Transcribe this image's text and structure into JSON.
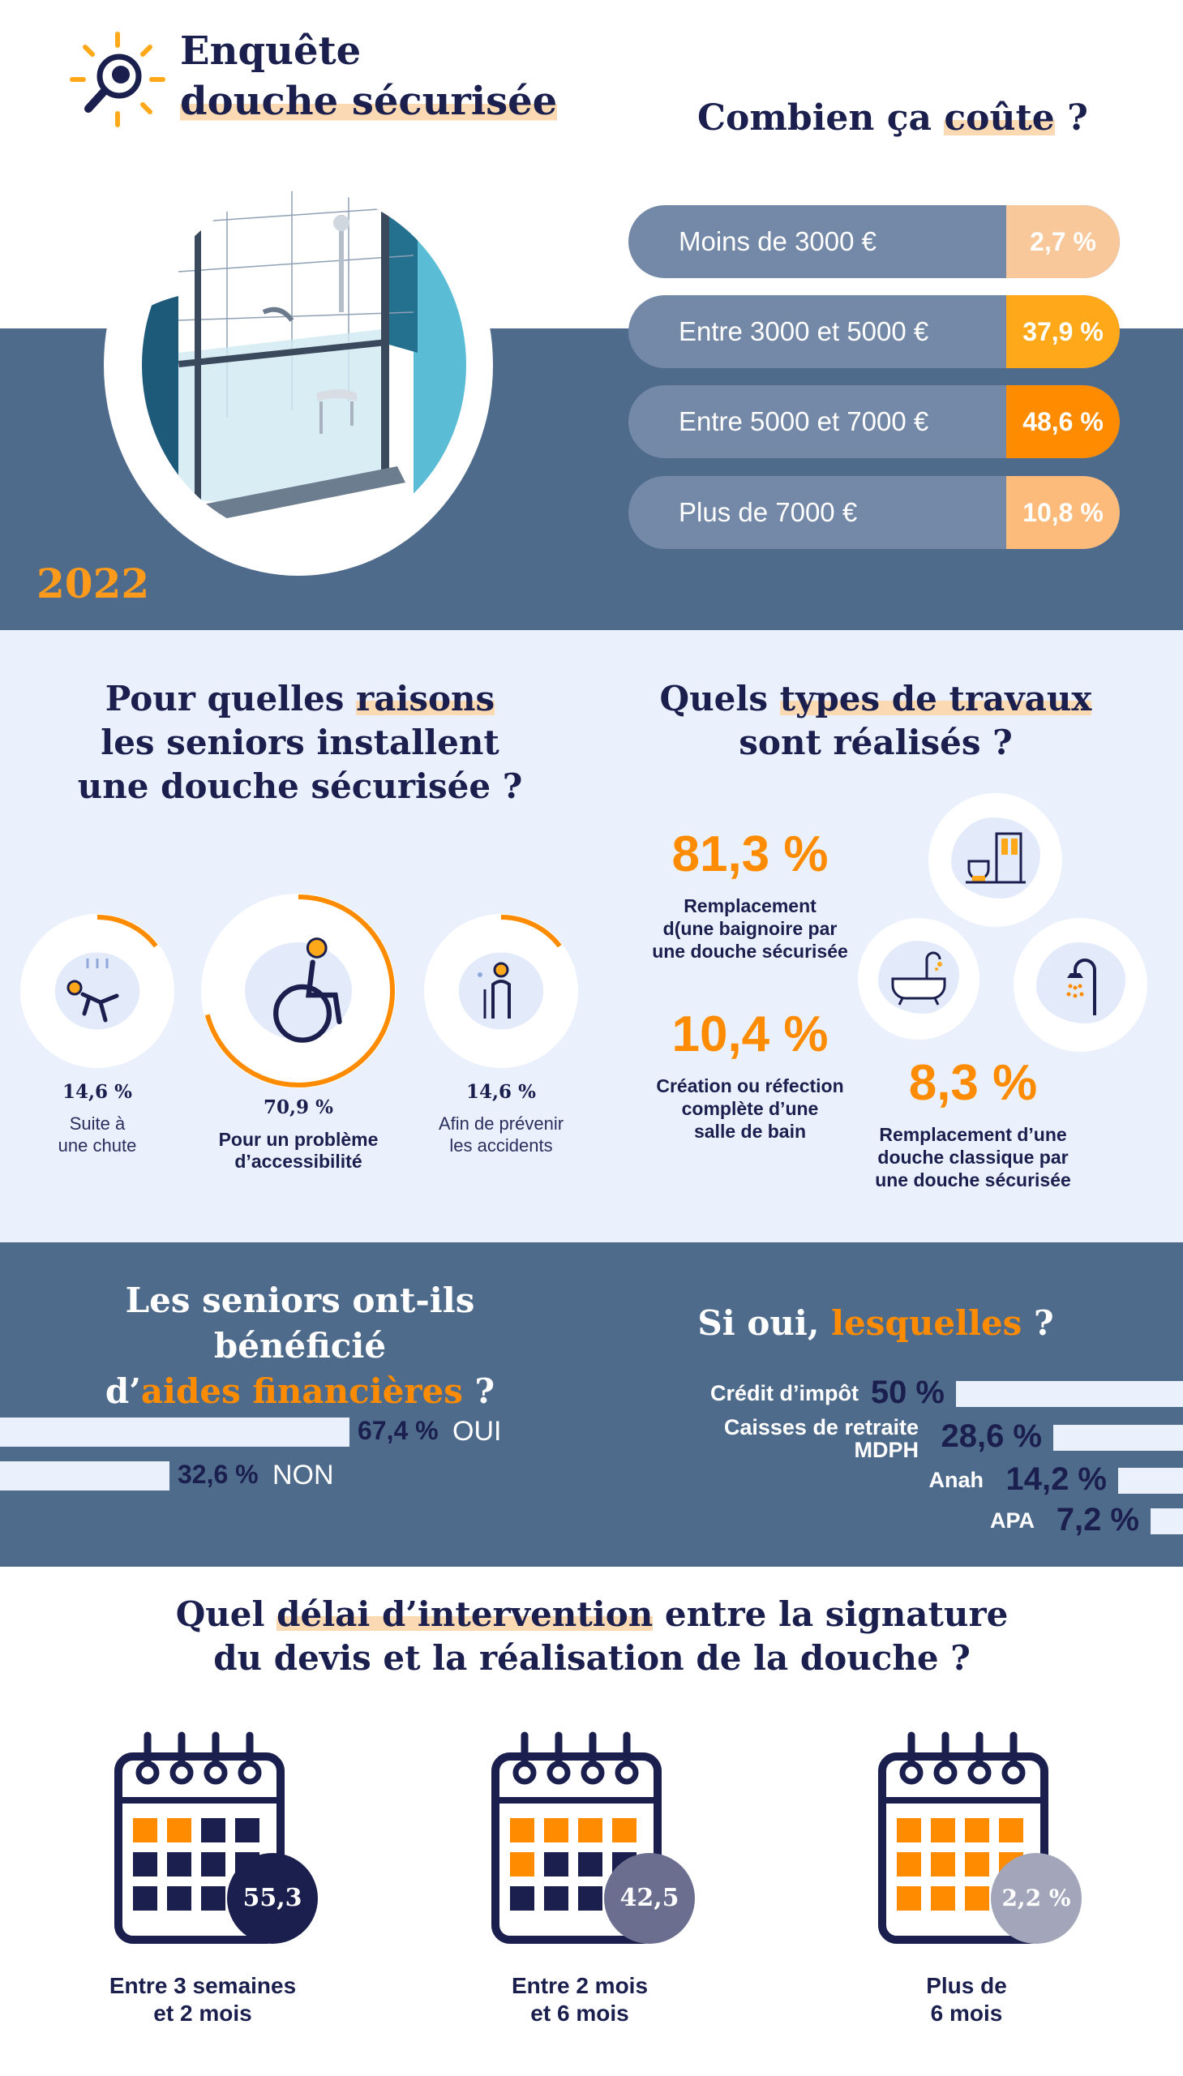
{
  "header": {
    "title_line1": "Enquête",
    "title_line2": "douche sécurisée",
    "year": "2022"
  },
  "cost": {
    "title_part1": "Combien ça ",
    "title_highlight": "coûte",
    "title_part2": " ?",
    "rows": [
      {
        "label": "Moins de 3000 €",
        "value": "2,7 %",
        "color": "#f8c79a"
      },
      {
        "label": "Entre 3000 et 5000 €",
        "value": "37,9 %",
        "color": "#ffa91a"
      },
      {
        "label": "Entre 5000 et 7000 €",
        "value": "48,6 %",
        "color": "#ff8c00"
      },
      {
        "label": "Plus de 7000 €",
        "value": "10,8 %",
        "color": "#fcbb7a"
      }
    ]
  },
  "reasons": {
    "title_part1": "Pour quelles ",
    "title_highlight": "raisons",
    "title_line2": "les seniors installent",
    "title_line3": "une douche sécurisée ?",
    "items": [
      {
        "pct": "14,6 %",
        "label_line1": "Suite à",
        "label_line2": "une chute",
        "fraction": 0.146,
        "icon": "fall-icon"
      },
      {
        "pct": "70,9 %",
        "label_line1": "Pour un problème",
        "label_line2": "d’accessibilité",
        "fraction": 0.709,
        "icon": "wheelchair-icon"
      },
      {
        "pct": "14,6 %",
        "label_line1": "Afin de prévenir",
        "label_line2": "les accidents",
        "fraction": 0.146,
        "icon": "walking-cane-icon"
      }
    ]
  },
  "works": {
    "title_part1": "Quels ",
    "title_highlight": "types de travaux",
    "title_line2": "sont réalisés ?",
    "items": [
      {
        "pct": "81,3 %",
        "label_line1": "Remplacement",
        "label_line2": "d(une baignoire par",
        "label_line3": "une douche sécurisée"
      },
      {
        "pct": "10,4 %",
        "label_line1": "Création ou réfection",
        "label_line2": "complète d’une",
        "label_line3": "salle de bain"
      },
      {
        "pct": "8,3 %",
        "label_line1": "Remplacement d’une",
        "label_line2": "douche classique par",
        "label_line3": "une douche sécurisée"
      }
    ]
  },
  "aids": {
    "title_line1": "Les seniors ont-ils bénéficié",
    "title_prefix": "d’",
    "title_highlight": "aides financières",
    "title_suffix": " ?",
    "answers": [
      {
        "pct": "67,4 %",
        "label": "OUI",
        "fraction": 0.674
      },
      {
        "pct": "32,6 %",
        "label": "NON",
        "fraction": 0.326
      }
    ]
  },
  "which": {
    "title_part1": "Si oui, ",
    "title_highlight": "lesquelles",
    "title_part2": " ?",
    "items": [
      {
        "label": "Crédit d’impôt",
        "pct": "50 %",
        "fraction": 0.5
      },
      {
        "label": "Caisses de retraite",
        "label2": "MDPH",
        "pct": "28,6 %",
        "fraction": 0.286
      },
      {
        "label": "Anah",
        "pct": "14,2 %",
        "fraction": 0.142
      },
      {
        "label": "APA",
        "pct": "7,2 %",
        "fraction": 0.072
      }
    ]
  },
  "delay": {
    "title_part1": "Quel ",
    "title_highlight": "délai d’intervention",
    "title_part2": " entre la signature",
    "title_line2": "du devis et la réalisation de la douche ?",
    "items": [
      {
        "pct": "55,3 %",
        "label_line1": "Entre 3 semaines",
        "label_line2": "et 2 mois",
        "badge_color": "#1a1f4e"
      },
      {
        "pct": "42,5 %",
        "label_line1": "Entre 2 mois",
        "label_line2": "et 6 mois",
        "badge_color": "#6b6e8f"
      },
      {
        "pct": "2,2 %",
        "label_line1": "Plus de",
        "label_line2": "6 mois",
        "badge_color": "#a3a6ba"
      }
    ]
  },
  "colors": {
    "navy": "#1a1f4e",
    "orange": "#ff8c00",
    "slate": "#4f6b8c",
    "light": "#eaf0fc"
  }
}
